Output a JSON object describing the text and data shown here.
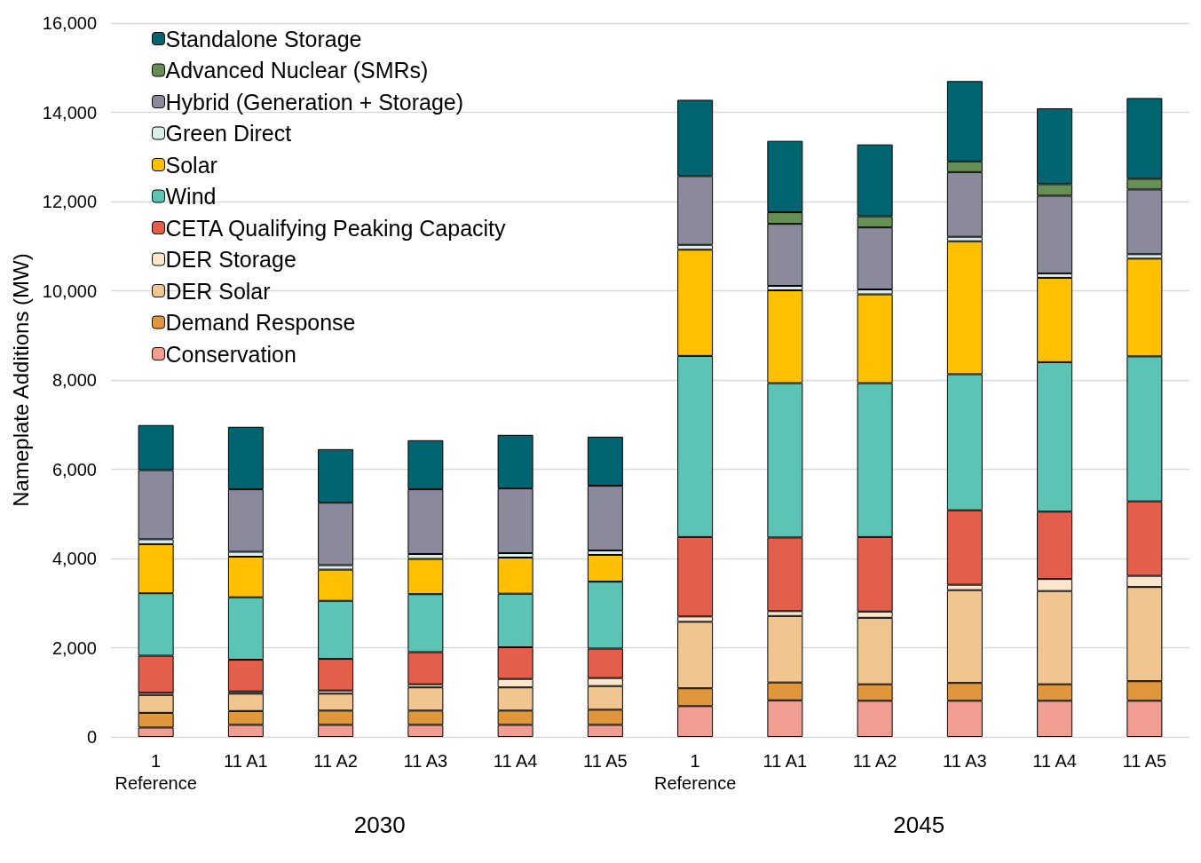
{
  "chart_data": {
    "type": "bar",
    "stacked": true,
    "ylabel": "Nameplate Additions (MW)",
    "categories": [
      "1\nReference",
      "11 A1",
      "11 A2",
      "11 A3",
      "11 A4",
      "11 A5",
      "1\nReference",
      "11 A1",
      "11 A2",
      "11 A3",
      "11 A4",
      "11 A5"
    ],
    "annotations": [
      "2030",
      "2045"
    ],
    "ylim": [
      0,
      16000
    ],
    "yticks": [
      0,
      {
        "value": 2000,
        "label": "2,000"
      },
      {
        "value": 4000,
        "label": "4,000"
      },
      {
        "value": 6000,
        "label": "6,000"
      },
      {
        "value": 8000,
        "label": "8,000"
      },
      {
        "value": 10000,
        "label": "10,000"
      },
      {
        "value": 12000,
        "label": "12,000"
      },
      {
        "value": 14000,
        "label": "14,000"
      },
      {
        "value": 16000,
        "label": "16,000"
      }
    ],
    "grid": "y",
    "legend": "top left",
    "series": [
      {
        "name": "Conservation",
        "color": "#f09d92",
        "values": [
          210,
          270,
          270,
          270,
          270,
          270,
          690,
          820,
          810,
          810,
          810,
          810
        ]
      },
      {
        "name": "Demand Response",
        "color": "#e0963a",
        "values": [
          330,
          310,
          320,
          320,
          320,
          340,
          400,
          400,
          370,
          400,
          370,
          440
        ]
      },
      {
        "name": "DER Solar",
        "color": "#f0c590",
        "values": [
          400,
          390,
          380,
          520,
          520,
          530,
          1490,
          1490,
          1490,
          2080,
          2090,
          2110
        ]
      },
      {
        "name": "DER Storage",
        "color": "#fbe6cc",
        "values": [
          50,
          50,
          70,
          70,
          190,
          180,
          120,
          110,
          140,
          120,
          270,
          250
        ]
      },
      {
        "name": "CETA Qualifying Peaking Capacity",
        "color": "#e35e4b",
        "values": [
          830,
          710,
          710,
          720,
          710,
          660,
          1780,
          1650,
          1670,
          1670,
          1510,
          1670
        ]
      },
      {
        "name": "Wind",
        "color": "#5bc4b4",
        "values": [
          1400,
          1400,
          1300,
          1300,
          1200,
          1500,
          4060,
          3460,
          3450,
          3050,
          3350,
          3250
        ]
      },
      {
        "name": "Solar",
        "color": "#ffc000",
        "values": [
          1100,
          910,
          700,
          790,
          810,
          600,
          2380,
          2080,
          1990,
          2980,
          1890,
          2190
        ]
      },
      {
        "name": "Green Direct",
        "color": "#d8efe9",
        "values": [
          110,
          110,
          100,
          110,
          100,
          100,
          110,
          100,
          110,
          100,
          100,
          100
        ]
      },
      {
        "name": "Hybrid (Generation + Storage)",
        "color": "#8b8a9c",
        "values": [
          1550,
          1400,
          1400,
          1450,
          1450,
          1450,
          1540,
          1390,
          1390,
          1450,
          1740,
          1450
        ]
      },
      {
        "name": "Advanced Nuclear (SMRs)",
        "color": "#668f55",
        "values": [
          null,
          null,
          null,
          null,
          null,
          null,
          null,
          260,
          250,
          240,
          260,
          240
        ]
      },
      {
        "name": "Standalone Storage",
        "color": "#006570",
        "values": [
          1010,
          1400,
          1200,
          1100,
          1200,
          1100,
          1710,
          1600,
          1610,
          1800,
          1700,
          1810
        ]
      }
    ]
  }
}
